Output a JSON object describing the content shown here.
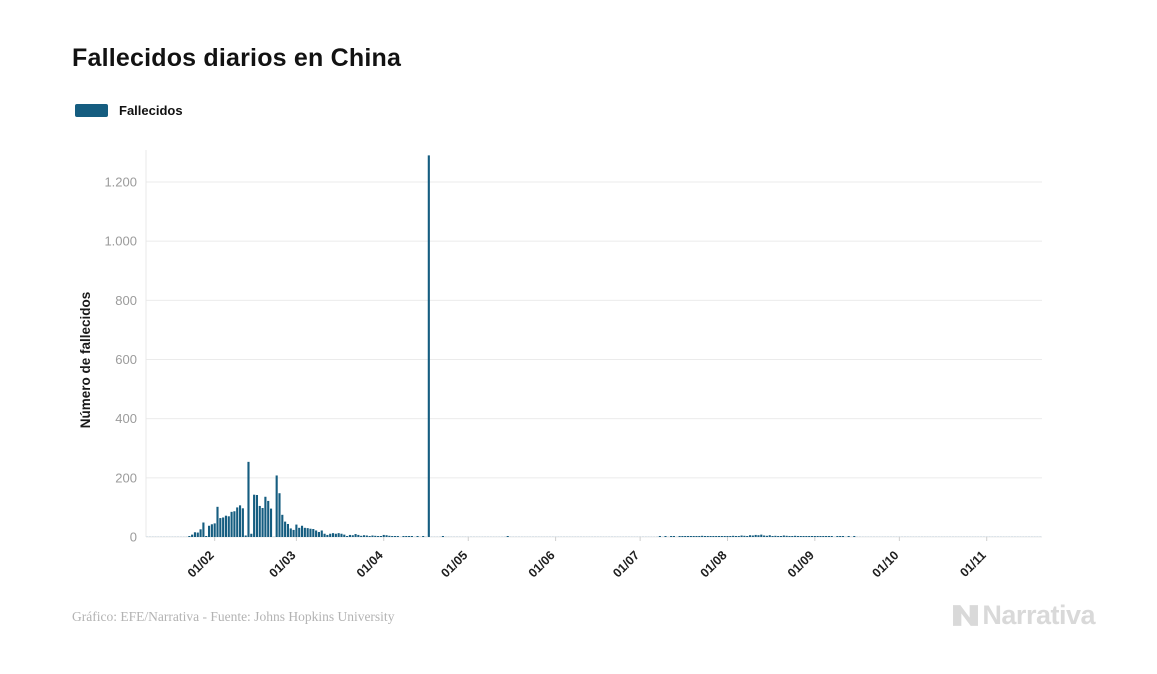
{
  "header": {
    "title": "Fallecidos diarios en China"
  },
  "legend": {
    "label": "Fallecidos",
    "swatch_color": "#155d80"
  },
  "footer": {
    "credit": "Gráfico: EFE/Narrativa - Fuente: Johns Hopkins University",
    "brand": "Narrativa"
  },
  "colors": {
    "bar": "#155d80",
    "grid": "#ebebeb",
    "axis_text": "#9b9b9b",
    "logo_gray": "#d9d9d9"
  },
  "chart_data": {
    "type": "bar",
    "title": "Fallecidos diarios en China",
    "series_name": "Fallecidos",
    "xlabel": "",
    "ylabel": "Número de fallecidos",
    "ylim": [
      0,
      1360
    ],
    "grid": "horizontal",
    "legend_position": "top-left",
    "bar_color": "#155d80",
    "zero_mark_color": "#d9e2e8",
    "y_ticks": [
      {
        "value": 0,
        "label": "0"
      },
      {
        "value": 200,
        "label": "200"
      },
      {
        "value": 400,
        "label": "400"
      },
      {
        "value": 600,
        "label": "600"
      },
      {
        "value": 800,
        "label": "800"
      },
      {
        "value": 1000,
        "label": "1.000"
      },
      {
        "value": 1200,
        "label": "1.200"
      }
    ],
    "x_ticks": [
      {
        "index": 24,
        "label": "01/02"
      },
      {
        "index": 53,
        "label": "01/03"
      },
      {
        "index": 84,
        "label": "01/04"
      },
      {
        "index": 114,
        "label": "01/05"
      },
      {
        "index": 145,
        "label": "01/06"
      },
      {
        "index": 175,
        "label": "01/07"
      },
      {
        "index": 206,
        "label": "01/08"
      },
      {
        "index": 237,
        "label": "01/09"
      },
      {
        "index": 267,
        "label": "01/10"
      },
      {
        "index": 298,
        "label": "01/11"
      }
    ],
    "values": [
      0,
      0,
      0,
      0,
      0,
      0,
      0,
      0,
      0,
      0,
      0,
      0,
      0,
      0,
      0,
      1,
      8,
      16,
      15,
      26,
      49,
      2,
      38,
      43,
      46,
      102,
      64,
      66,
      72,
      70,
      85,
      87,
      100,
      107,
      97,
      5,
      254,
      11,
      143,
      142,
      105,
      98,
      136,
      122,
      96,
      0,
      208,
      148,
      75,
      52,
      44,
      29,
      24,
      42,
      31,
      38,
      31,
      30,
      28,
      27,
      22,
      17,
      22,
      11,
      7,
      11,
      13,
      11,
      13,
      11,
      8,
      3,
      7,
      6,
      10,
      7,
      4,
      6,
      5,
      3,
      5,
      4,
      2,
      1,
      7,
      6,
      4,
      3,
      1,
      2,
      0,
      2,
      1,
      2,
      1,
      0,
      1,
      0,
      1,
      0,
      1290,
      0,
      0,
      0,
      0,
      1,
      0,
      0,
      0,
      0,
      0,
      0,
      0,
      0,
      0,
      0,
      0,
      0,
      0,
      0,
      0,
      0,
      0,
      0,
      0,
      0,
      0,
      0,
      1,
      0,
      0,
      0,
      0,
      0,
      0,
      0,
      0,
      0,
      0,
      0,
      0,
      0,
      0,
      0,
      0,
      0,
      0,
      0,
      0,
      0,
      0,
      0,
      0,
      0,
      0,
      0,
      0,
      0,
      0,
      0,
      0,
      0,
      0,
      0,
      0,
      0,
      0,
      0,
      0,
      0,
      0,
      0,
      0,
      0,
      0,
      0,
      0,
      0,
      0,
      0,
      0,
      0,
      1,
      0,
      1,
      0,
      2,
      1,
      0,
      1,
      2,
      1,
      3,
      2,
      1,
      2,
      3,
      4,
      3,
      2,
      3,
      2,
      1,
      2,
      1,
      2,
      3,
      2,
      4,
      3,
      2,
      5,
      4,
      3,
      6,
      5,
      7,
      6,
      8,
      5,
      4,
      6,
      3,
      4,
      2,
      3,
      5,
      4,
      3,
      2,
      4,
      3,
      2,
      1,
      2,
      1,
      2,
      2,
      1,
      3,
      2,
      1,
      2,
      1,
      0,
      1,
      2,
      1,
      0,
      1,
      0,
      1,
      0,
      0,
      0,
      0,
      0,
      0,
      0,
      0,
      0,
      0,
      0,
      0,
      0,
      0,
      0,
      0,
      0,
      0,
      0,
      0,
      0,
      0,
      0,
      0,
      0,
      0,
      0,
      0,
      0,
      0,
      0,
      0,
      0,
      0,
      0,
      0,
      0,
      0,
      0,
      0,
      0,
      0,
      0,
      0,
      0,
      0,
      0,
      0,
      0,
      0,
      0,
      0,
      0,
      0,
      0,
      0,
      0,
      0,
      0,
      0,
      0,
      0,
      0,
      0,
      0,
      0
    ]
  }
}
